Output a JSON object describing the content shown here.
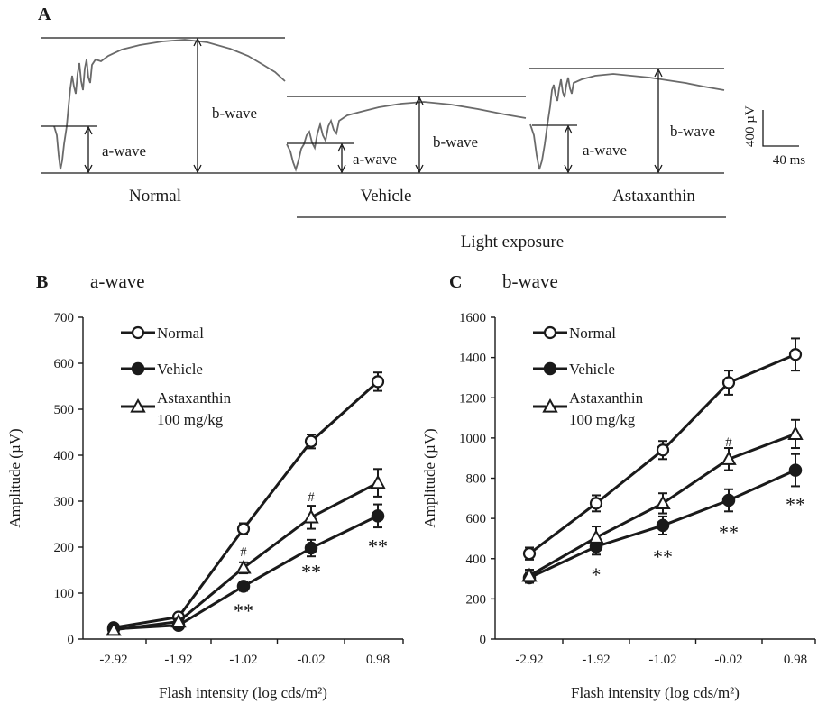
{
  "panel_a": {
    "letter": "A",
    "labels": {
      "a_wave": "a-wave",
      "b_wave": "b-wave"
    },
    "traces": [
      {
        "name": "Normal"
      },
      {
        "name": "Vehicle"
      },
      {
        "name": "Astaxanthin"
      }
    ],
    "light_exposure": "Light exposure",
    "scale_bar": {
      "amplitude": "400 µV",
      "time": "40 ms"
    }
  },
  "chart_data": [
    {
      "type": "line",
      "letter": "B",
      "title": "a-wave",
      "xlabel": "Flash intensity (log cds/m²)",
      "ylabel": "Amplitude (µV)",
      "categories": [
        "-2.92",
        "-1.92",
        "-1.02",
        "-0.02",
        "0.98"
      ],
      "ylim": [
        0,
        700
      ],
      "yticks": [
        0,
        100,
        200,
        300,
        400,
        500,
        600,
        700
      ],
      "legend": "top-left",
      "series": [
        {
          "name": "Normal",
          "marker": "open-circle",
          "values": [
            25,
            48,
            240,
            430,
            560
          ],
          "errors": [
            5,
            6,
            12,
            15,
            20
          ]
        },
        {
          "name": "Vehicle",
          "marker": "filled-circle",
          "values": [
            22,
            30,
            115,
            198,
            268
          ],
          "errors": [
            4,
            5,
            10,
            18,
            25
          ]
        },
        {
          "name": "Astaxanthin\n100 mg/kg",
          "marker": "open-triangle",
          "values": [
            20,
            38,
            155,
            265,
            340
          ],
          "errors": [
            4,
            6,
            12,
            25,
            30
          ]
        }
      ],
      "annotations": [
        {
          "x": "-1.02",
          "text": "#",
          "y": 180
        },
        {
          "x": "-1.02",
          "text": "**",
          "y": 75
        },
        {
          "x": "-0.02",
          "text": "#",
          "y": 300
        },
        {
          "x": "-0.02",
          "text": "**",
          "y": 160
        },
        {
          "x": "0.98",
          "text": "**",
          "y": 215
        }
      ]
    },
    {
      "type": "line",
      "letter": "C",
      "title": "b-wave",
      "xlabel": "Flash intensity (log cds/m²)",
      "ylabel": "Amplitude (µV)",
      "categories": [
        "-2.92",
        "-1.92",
        "-1.02",
        "-0.02",
        "0.98"
      ],
      "ylim": [
        0,
        1600
      ],
      "yticks": [
        0,
        200,
        400,
        600,
        800,
        1000,
        1200,
        1400,
        1600
      ],
      "legend": "top-left",
      "series": [
        {
          "name": "Normal",
          "marker": "open-circle",
          "values": [
            425,
            675,
            940,
            1275,
            1415
          ],
          "errors": [
            30,
            40,
            45,
            60,
            80
          ]
        },
        {
          "name": "Vehicle",
          "marker": "filled-circle",
          "values": [
            305,
            460,
            565,
            690,
            840
          ],
          "errors": [
            25,
            40,
            45,
            55,
            80
          ]
        },
        {
          "name": "Astaxanthin\n100 mg/kg",
          "marker": "open-triangle",
          "values": [
            315,
            505,
            675,
            895,
            1020
          ],
          "errors": [
            30,
            55,
            50,
            55,
            70
          ]
        }
      ],
      "annotations": [
        {
          "x": "-1.92",
          "text": "*",
          "y": 350
        },
        {
          "x": "-1.02",
          "text": "**",
          "y": 440
        },
        {
          "x": "-0.02",
          "text": "#",
          "y": 960
        },
        {
          "x": "-0.02",
          "text": "**",
          "y": 560
        },
        {
          "x": "0.98",
          "text": "**",
          "y": 700
        }
      ]
    }
  ]
}
